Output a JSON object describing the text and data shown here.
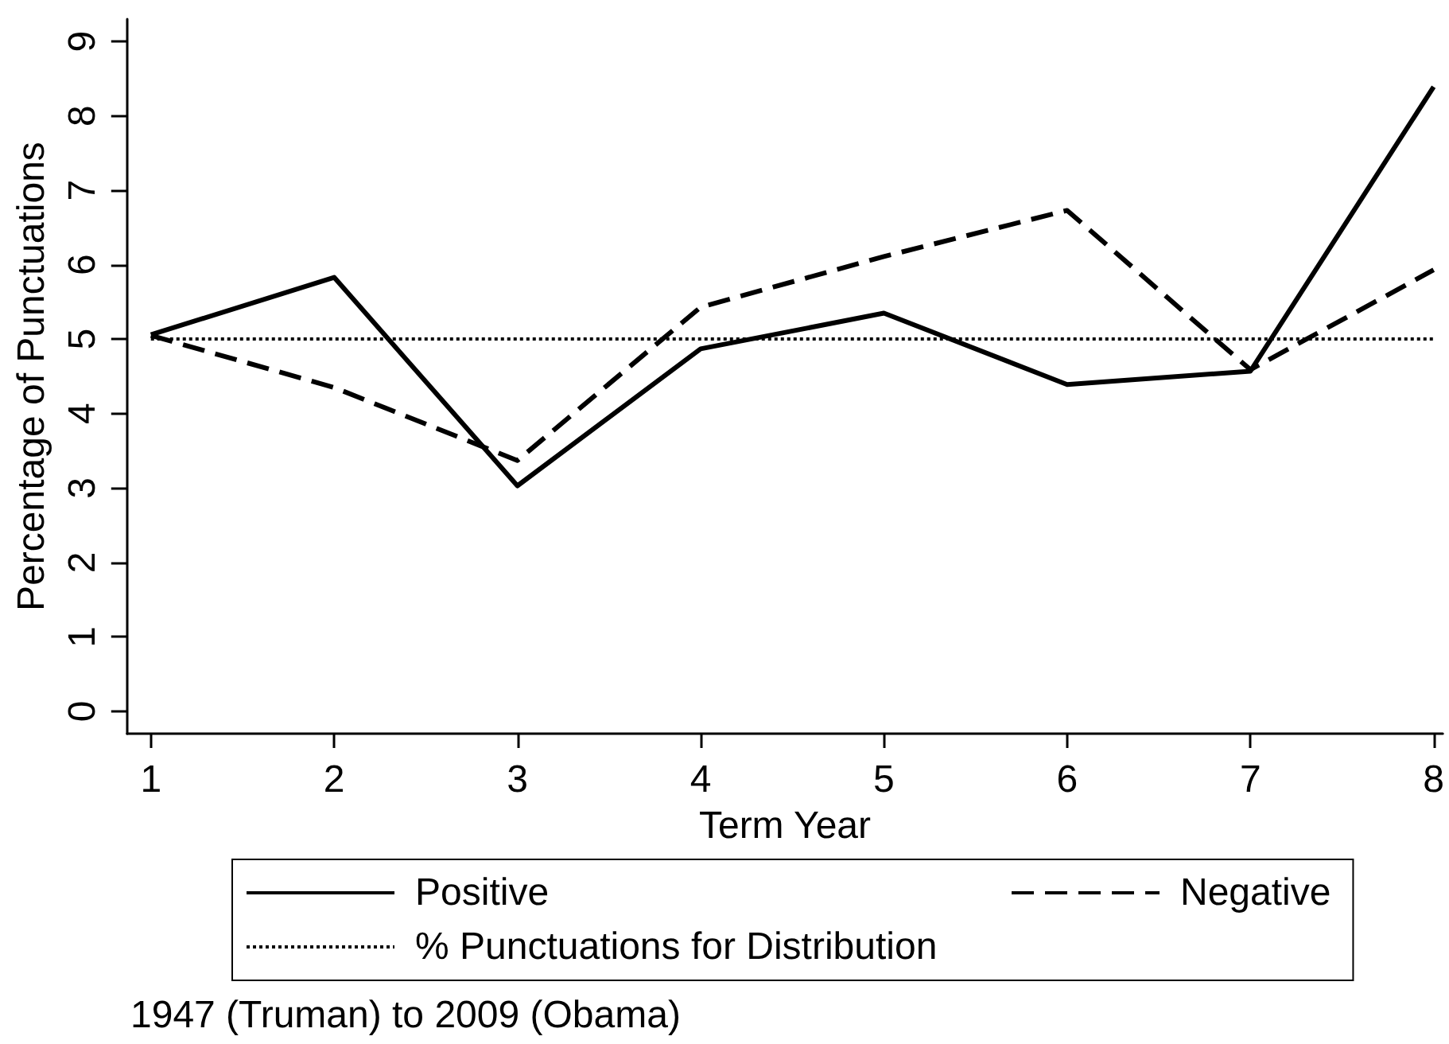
{
  "chart_data": {
    "type": "line",
    "xlabel": "Term Year",
    "ylabel": "Percentage of Punctuations",
    "x": [
      1,
      2,
      3,
      4,
      5,
      6,
      7,
      8
    ],
    "series": [
      {
        "name": "Positive",
        "color": "#000000",
        "line_style": "solid",
        "values": [
          5.06,
          5.83,
          3.03,
          4.87,
          5.35,
          4.39,
          4.57,
          8.39
        ]
      },
      {
        "name": "Negative",
        "color": "#000000",
        "line_style": "dashed",
        "values": [
          5.05,
          4.35,
          3.37,
          5.43,
          6.11,
          6.73,
          4.59,
          5.93
        ]
      }
    ],
    "xlim": [
      0.87,
      8.05
    ],
    "ylim": [
      -0.3,
      9.3
    ],
    "xticks": [
      1,
      2,
      3,
      4,
      5,
      6,
      7,
      8
    ],
    "yticks": [
      0,
      1,
      2,
      3,
      4,
      5,
      6,
      7,
      8,
      9
    ],
    "ref_lines": [
      {
        "axis": "y",
        "value": 5,
        "label": "% Punctuations for Distribution",
        "color": "#000000",
        "line_style": "dotted"
      }
    ],
    "legend": "bottom",
    "marker": "none",
    "grid": false,
    "annotations": [
      "1947 (Truman) to 2009 (Obama)"
    ]
  }
}
